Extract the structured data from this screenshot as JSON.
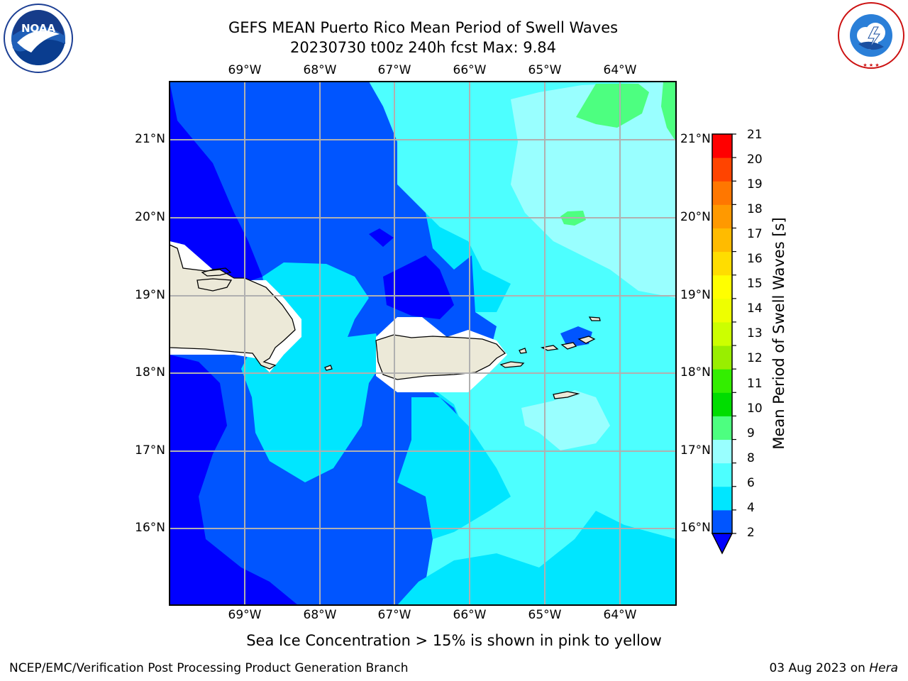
{
  "header": {
    "title_line1": "GEFS MEAN Puerto Rico Mean Period of Swell Waves",
    "title_line2": "20230730 t00z 240h fcst   Max: 9.84"
  },
  "logos": {
    "left": {
      "icon": "noaa-logo",
      "text": "NOAA"
    },
    "right": {
      "icon": "nws-logo",
      "text": "NATIONAL WEATHER SERVICE"
    }
  },
  "map": {
    "lon_labels": [
      "69°W",
      "68°W",
      "67°W",
      "66°W",
      "65°W",
      "64°W"
    ],
    "lat_labels": [
      "21°N",
      "20°N",
      "19°N",
      "18°N",
      "17°N",
      "16°N"
    ]
  },
  "colorbar": {
    "title": "Mean Period of Swell Waves [s]",
    "ticks": [
      "21",
      "20",
      "19",
      "18",
      "17",
      "16",
      "15",
      "14",
      "13",
      "12",
      "11",
      "10",
      "9",
      "8",
      "6",
      "4",
      "2"
    ],
    "colors": [
      "#0000ff",
      "#0055ff",
      "#00e6ff",
      "#4dffff",
      "#99ffff",
      "#4dff80",
      "#00dd00",
      "#33ee00",
      "#99ee00",
      "#ccff00",
      "#eeff00",
      "#ffff00",
      "#ffdd00",
      "#ffbb00",
      "#ff9900",
      "#ff7700",
      "#ff4400",
      "#ff0000"
    ]
  },
  "legend_note": "Sea Ice Concentration > 15% is shown in pink to yellow",
  "footer": {
    "left": "NCEP/EMC/Verification Post Processing Product Generation Branch",
    "right_date": "03 Aug 2023 on ",
    "right_host": "Hera"
  }
}
